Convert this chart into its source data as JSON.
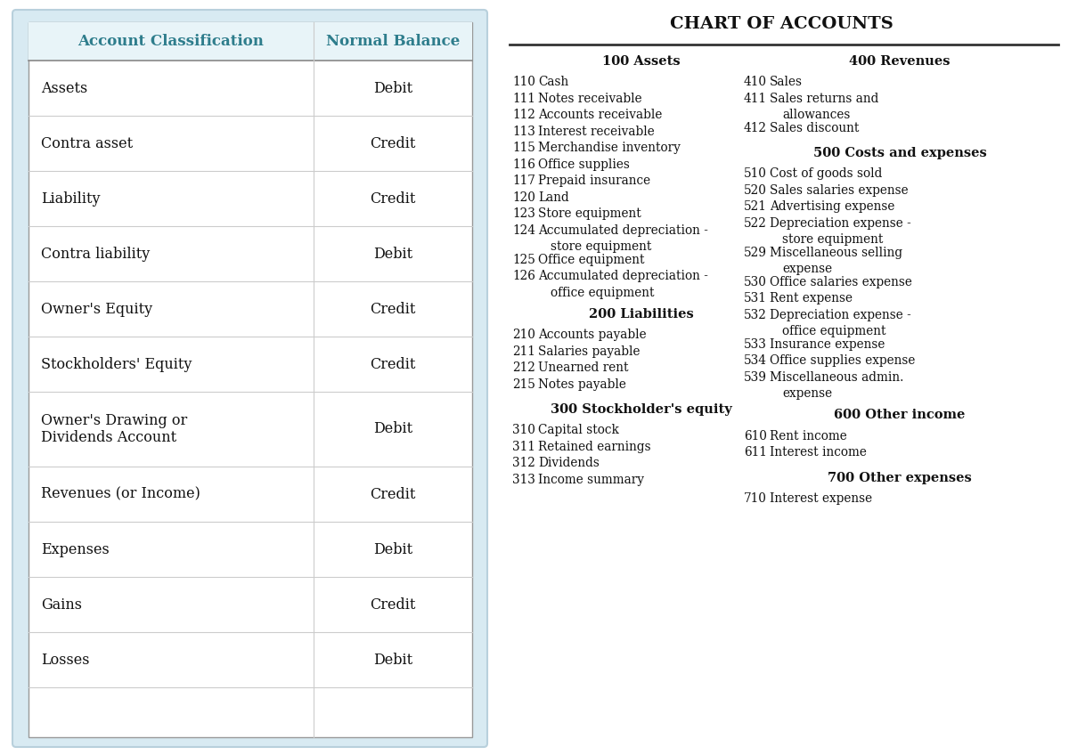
{
  "title": "CHART OF ACCOUNTS",
  "teal": "#2e7d8c",
  "table_header": [
    "Account Classification",
    "Normal Balance"
  ],
  "table_rows": [
    [
      "Assets",
      "Debit"
    ],
    [
      "Contra asset",
      "Credit"
    ],
    [
      "Liability",
      "Credit"
    ],
    [
      "Contra liability",
      "Debit"
    ],
    [
      "Owner's Equity",
      "Credit"
    ],
    [
      "Stockholders' Equity",
      "Credit"
    ],
    [
      "Owner's Drawing or\nDividends Account",
      "Debit"
    ],
    [
      "Revenues (or Income)",
      "Credit"
    ],
    [
      "Expenses",
      "Debit"
    ],
    [
      "Gains",
      "Credit"
    ],
    [
      "Losses",
      "Debit"
    ]
  ],
  "col1_assets": [
    {
      "num": "110",
      "text": "Cash"
    },
    {
      "num": "111",
      "text": "Notes receivable"
    },
    {
      "num": "112",
      "text": "Accounts receivable"
    },
    {
      "num": "113",
      "text": "Interest receivable"
    },
    {
      "num": "115",
      "text": "Merchandise inventory"
    },
    {
      "num": "116",
      "text": "Office supplies"
    },
    {
      "num": "117",
      "text": "Prepaid insurance"
    },
    {
      "num": "120",
      "text": "Land"
    },
    {
      "num": "123",
      "text": "Store equipment"
    },
    {
      "num": "124",
      "text": "Accumulated depreciation -\n    store equipment"
    },
    {
      "num": "125",
      "text": "Office equipment"
    },
    {
      "num": "126",
      "text": "Accumulated depreciation -\n    office equipment"
    }
  ],
  "col1_liabilities": [
    {
      "num": "210",
      "text": "Accounts payable"
    },
    {
      "num": "211",
      "text": "Salaries payable"
    },
    {
      "num": "212",
      "text": "Unearned rent"
    },
    {
      "num": "215",
      "text": "Notes payable"
    }
  ],
  "col1_equity": [
    {
      "num": "310",
      "text": "Capital stock"
    },
    {
      "num": "311",
      "text": "Retained earnings"
    },
    {
      "num": "312",
      "text": "Dividends"
    },
    {
      "num": "313",
      "text": "Income summary"
    }
  ],
  "col2_revenues": [
    {
      "num": "410",
      "text": "Sales"
    },
    {
      "num": "411",
      "text": "Sales returns and\n    allowances"
    },
    {
      "num": "412",
      "text": "Sales discount"
    }
  ],
  "col2_costs": [
    {
      "num": "510",
      "text": "Cost of goods sold"
    },
    {
      "num": "520",
      "text": "Sales salaries expense"
    },
    {
      "num": "521",
      "text": "Advertising expense"
    },
    {
      "num": "522",
      "text": "Depreciation expense -\n    store equipment"
    },
    {
      "num": "529",
      "text": "Miscellaneous selling\n    expense"
    },
    {
      "num": "530",
      "text": "Office salaries expense"
    },
    {
      "num": "531",
      "text": "Rent expense"
    },
    {
      "num": "532",
      "text": "Depreciation expense -\n    office equipment"
    },
    {
      "num": "533",
      "text": "Insurance expense"
    },
    {
      "num": "534",
      "text": "Office supplies expense"
    },
    {
      "num": "539",
      "text": "Miscellaneous admin.\n    expense"
    }
  ],
  "col2_other_income": [
    {
      "num": "610",
      "text": "Rent income"
    },
    {
      "num": "611",
      "text": "Interest income"
    }
  ],
  "col2_other_expenses": [
    {
      "num": "710",
      "text": "Interest expense"
    }
  ]
}
